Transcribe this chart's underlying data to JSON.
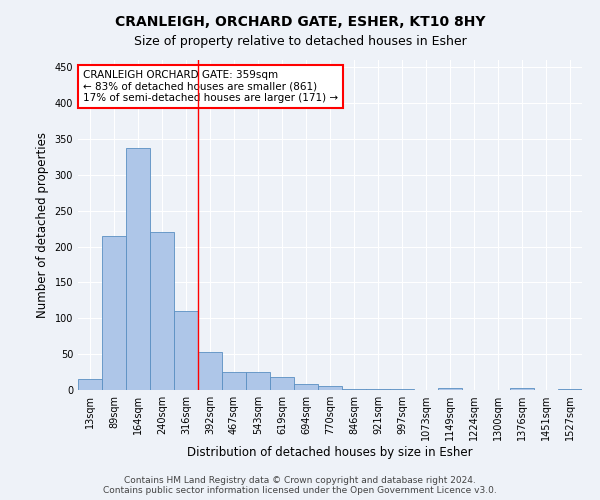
{
  "title": "CRANLEIGH, ORCHARD GATE, ESHER, KT10 8HY",
  "subtitle": "Size of property relative to detached houses in Esher",
  "xlabel": "Distribution of detached houses by size in Esher",
  "ylabel": "Number of detached properties",
  "categories": [
    "13sqm",
    "89sqm",
    "164sqm",
    "240sqm",
    "316sqm",
    "392sqm",
    "467sqm",
    "543sqm",
    "619sqm",
    "694sqm",
    "770sqm",
    "846sqm",
    "921sqm",
    "997sqm",
    "1073sqm",
    "1149sqm",
    "1224sqm",
    "1300sqm",
    "1376sqm",
    "1451sqm",
    "1527sqm"
  ],
  "values": [
    15,
    215,
    338,
    220,
    110,
    53,
    25,
    25,
    18,
    8,
    6,
    2,
    2,
    2,
    0,
    3,
    0,
    0,
    3,
    0,
    2
  ],
  "bar_color": "#aec6e8",
  "bar_edge_color": "#5a8fc2",
  "vline_x_index": 4.5,
  "vline_color": "red",
  "annotation_line1": "CRANLEIGH ORCHARD GATE: 359sqm",
  "annotation_line2": "← 83% of detached houses are smaller (861)",
  "annotation_line3": "17% of semi-detached houses are larger (171) →",
  "annotation_box_color": "white",
  "annotation_box_edge_color": "red",
  "footer_line1": "Contains HM Land Registry data © Crown copyright and database right 2024.",
  "footer_line2": "Contains public sector information licensed under the Open Government Licence v3.0.",
  "ylim": [
    0,
    460
  ],
  "yticks": [
    0,
    50,
    100,
    150,
    200,
    250,
    300,
    350,
    400,
    450
  ],
  "background_color": "#eef2f8",
  "grid_color": "white",
  "title_fontsize": 10,
  "subtitle_fontsize": 9,
  "tick_fontsize": 7,
  "label_fontsize": 8.5,
  "footer_fontsize": 6.5
}
